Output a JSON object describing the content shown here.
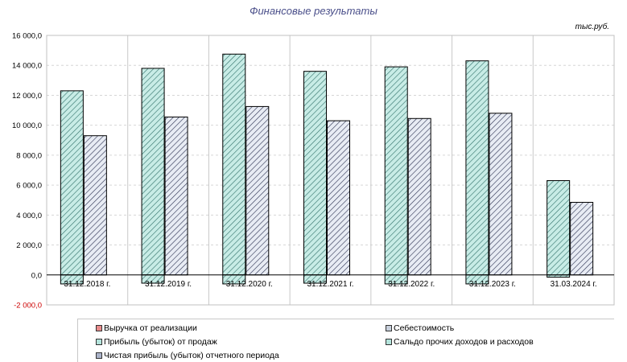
{
  "chart_data": {
    "type": "bar",
    "title": "Финансовые результаты",
    "unit": "тыс.руб.",
    "categories": [
      "31.12.2018 г.",
      "31.12.2019 г.",
      "31.12.2020 г.",
      "31.12.2021 г.",
      "31.12.2022 г.",
      "31.12.2023 г.",
      "31.03.2024 г."
    ],
    "ylim": [
      -2000,
      16000
    ],
    "yticks": [
      "-2 000,0",
      "0,0",
      "2 000,0",
      "4 000,0",
      "6 000,0",
      "8 000,0",
      "10 000,0",
      "12 000,0",
      "14 000,0",
      "16 000,0"
    ],
    "ytick_values": [
      -2000,
      0,
      2000,
      4000,
      6000,
      8000,
      10000,
      12000,
      14000,
      16000
    ],
    "grid": true,
    "legend_position": "bottom",
    "series": [
      {
        "name": "Выручка от реализации",
        "values": [
          0,
          0,
          0,
          0,
          0,
          0,
          0
        ],
        "color": "#e06060"
      },
      {
        "name": "Себестоимость",
        "values": [
          0,
          0,
          0,
          0,
          0,
          0,
          0
        ],
        "color": "#b0b8c8"
      },
      {
        "name": "Прибыль (убыток) от продаж",
        "values": [
          12300,
          13800,
          14750,
          13600,
          13900,
          14300,
          6300
        ],
        "color": "#a8e0d8"
      },
      {
        "name": "Сальдо прочих доходов и расходов",
        "values": [
          -600,
          -550,
          -600,
          -550,
          -600,
          -600,
          -150
        ],
        "color": "#a8e0d8"
      },
      {
        "name": "Чистая прибыль (убыток) отчетного периода",
        "values": [
          9300,
          10550,
          11250,
          10300,
          10450,
          10800,
          4850
        ],
        "color": "#c0c8d8"
      }
    ]
  }
}
